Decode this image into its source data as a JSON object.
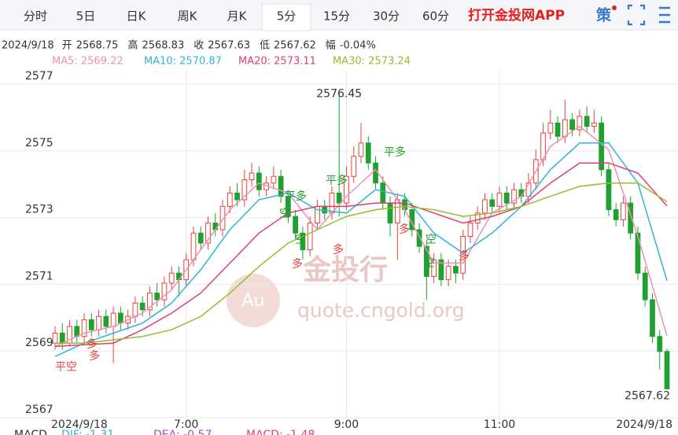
{
  "tabs": [
    "分时",
    "5日",
    "日K",
    "周K",
    "月K",
    "5分",
    "15分",
    "30分",
    "60分"
  ],
  "active_tab": 5,
  "app_link": "打开金投网APP",
  "strategy_icon": "策",
  "info": {
    "date": "2024/9/18",
    "items": [
      {
        "label": "开",
        "value": "2568.75"
      },
      {
        "label": "高",
        "value": "2568.83"
      },
      {
        "label": "收",
        "value": "2567.63"
      },
      {
        "label": "低",
        "value": "2567.62"
      },
      {
        "label": "幅",
        "value": "-0.04%"
      }
    ]
  },
  "watermark": {
    "logo": "Au",
    "brand": "金投行",
    "site": "quote.cngold.org"
  },
  "signals": [
    "平空",
    "多",
    "平多",
    "空",
    "多",
    "平多",
    "多",
    "平多",
    "空",
    "多",
    "多",
    "空",
    "多",
    "空"
  ],
  "macd_footer": [
    "MACD",
    "DIF: -1.31",
    "DEA: -0.57",
    "MACD: -1.48"
  ],
  "chart_data": {
    "type": "candlestick",
    "xlim": [
      0,
      84
    ],
    "xticks": [
      {
        "value": 0,
        "label": "2024/9/18"
      },
      {
        "value": 18,
        "label": "7:00"
      },
      {
        "value": 40,
        "label": "9:00"
      },
      {
        "value": 61,
        "label": "11:00"
      },
      {
        "value": 84,
        "label": "2024/9/18"
      }
    ],
    "ylim": [
      2567,
      2577
    ],
    "yticks": [
      2567,
      2569,
      2571,
      2573,
      2575,
      2577
    ],
    "grid": true,
    "up_color": "#e8423a",
    "down_color": "#1fa12f",
    "open": [
      2569.0,
      2569.3,
      2569.0,
      2569.5,
      2569.2,
      2569.7,
      2569.4,
      2569.8,
      2569.5,
      2569.9,
      2569.6,
      2569.8,
      2570.2,
      2570.0,
      2570.5,
      2570.3,
      2570.8,
      2571.1,
      2570.9,
      2571.5,
      2572.3,
      2572.0,
      2572.6,
      2572.4,
      2573.1,
      2573.5,
      2573.3,
      2573.9,
      2574.1,
      2573.6,
      2573.8,
      2574.0,
      2573.4,
      2572.8,
      2572.3,
      2571.8,
      2572.6,
      2573.1,
      2572.9,
      2573.5,
      2573.2,
      2574.0,
      2574.6,
      2575.0,
      2574.4,
      2573.8,
      2573.2,
      2572.6,
      2573.3,
      2573.0,
      2572.4,
      2571.9,
      2571.0,
      2571.5,
      2570.9,
      2571.3,
      2571.1,
      2572.2,
      2572.6,
      2572.9,
      2573.3,
      2573.1,
      2573.5,
      2573.2,
      2573.6,
      2573.4,
      2573.8,
      2574.5,
      2575.3,
      2575.6,
      2575.2,
      2575.7,
      2575.4,
      2575.8,
      2575.5,
      2575.6,
      2574.2,
      2573.0,
      2572.7,
      2573.2,
      2572.3,
      2571.1,
      2570.3,
      2569.2,
      2568.75
    ],
    "high": [
      2569.5,
      2569.6,
      2569.7,
      2569.7,
      2569.9,
      2569.9,
      2570.0,
      2570.0,
      2570.1,
      2570.1,
      2570.0,
      2570.4,
      2570.4,
      2570.7,
      2570.8,
      2571.0,
      2571.3,
      2571.3,
      2571.7,
      2572.5,
      2572.5,
      2572.8,
      2572.9,
      2573.3,
      2573.7,
      2573.8,
      2574.2,
      2574.4,
      2574.3,
      2574.0,
      2574.3,
      2574.2,
      2573.6,
      2573.0,
      2572.5,
      2572.8,
      2573.3,
      2573.3,
      2573.7,
      2576.45,
      2574.3,
      2574.9,
      2575.6,
      2575.2,
      2574.6,
      2574.0,
      2573.4,
      2573.5,
      2573.5,
      2573.2,
      2572.6,
      2572.1,
      2571.7,
      2571.7,
      2571.5,
      2571.5,
      2572.4,
      2572.8,
      2573.1,
      2573.5,
      2573.5,
      2573.7,
      2573.7,
      2573.8,
      2573.8,
      2574.1,
      2574.8,
      2575.6,
      2576.0,
      2575.8,
      2576.3,
      2575.9,
      2576.0,
      2576.1,
      2576.0,
      2575.8,
      2574.4,
      2573.2,
      2573.4,
      2573.4,
      2572.5,
      2571.3,
      2570.5,
      2569.4,
      2568.83
    ],
    "low": [
      2568.8,
      2568.8,
      2568.9,
      2569.0,
      2569.0,
      2569.2,
      2569.2,
      2569.3,
      2568.4,
      2569.4,
      2569.4,
      2569.6,
      2569.8,
      2569.8,
      2570.1,
      2570.1,
      2570.6,
      2570.4,
      2570.7,
      2571.3,
      2571.8,
      2571.8,
      2572.2,
      2572.2,
      2572.9,
      2573.1,
      2573.1,
      2573.7,
      2573.4,
      2573.4,
      2573.6,
      2573.2,
      2572.6,
      2572.1,
      2571.5,
      2571.6,
      2572.4,
      2572.7,
      2572.7,
      2572.8,
      2573.0,
      2573.8,
      2574.4,
      2574.2,
      2573.6,
      2573.0,
      2572.2,
      2571.5,
      2572.8,
      2572.2,
      2571.7,
      2570.3,
      2570.8,
      2570.7,
      2570.7,
      2570.8,
      2570.9,
      2572.0,
      2572.4,
      2572.7,
      2572.9,
      2572.9,
      2573.0,
      2573.0,
      2573.2,
      2573.2,
      2573.6,
      2574.3,
      2575.1,
      2575.0,
      2575.0,
      2575.2,
      2575.2,
      2575.3,
      2575.3,
      2574.0,
      2572.8,
      2572.5,
      2572.5,
      2572.1,
      2570.9,
      2570.1,
      2569.0,
      2568.2,
      2567.62
    ],
    "close": [
      2569.3,
      2569.0,
      2569.5,
      2569.2,
      2569.7,
      2569.4,
      2569.8,
      2569.5,
      2569.9,
      2569.6,
      2569.8,
      2570.2,
      2570.0,
      2570.5,
      2570.3,
      2570.8,
      2571.1,
      2570.9,
      2571.5,
      2572.3,
      2572.0,
      2572.6,
      2572.4,
      2573.1,
      2573.5,
      2573.3,
      2573.9,
      2574.1,
      2573.6,
      2573.8,
      2574.0,
      2573.4,
      2572.8,
      2572.3,
      2571.8,
      2572.6,
      2573.1,
      2572.9,
      2573.5,
      2573.2,
      2574.0,
      2574.6,
      2575.0,
      2574.4,
      2573.8,
      2573.2,
      2572.6,
      2573.3,
      2573.0,
      2572.4,
      2571.9,
      2571.0,
      2571.5,
      2570.9,
      2571.3,
      2571.1,
      2572.2,
      2572.6,
      2572.9,
      2573.3,
      2573.1,
      2573.5,
      2573.2,
      2573.6,
      2573.4,
      2573.8,
      2574.5,
      2575.3,
      2575.6,
      2575.2,
      2575.7,
      2575.4,
      2575.8,
      2575.5,
      2575.6,
      2574.2,
      2573.0,
      2572.7,
      2573.2,
      2572.3,
      2571.1,
      2570.3,
      2569.2,
      2568.75,
      2567.63
    ],
    "ma_x": [
      0,
      4,
      8,
      12,
      16,
      20,
      24,
      28,
      32,
      36,
      40,
      44,
      48,
      52,
      56,
      60,
      64,
      68,
      72,
      76,
      80,
      84
    ],
    "series": [
      {
        "name": "MA5: 2569.22",
        "color": "#f08fb0",
        "values": [
          2568.9,
          2569.3,
          2569.5,
          2569.9,
          2570.6,
          2571.8,
          2573.0,
          2573.8,
          2573.5,
          2572.4,
          2573.4,
          2574.2,
          2573.0,
          2571.4,
          2571.4,
          2572.9,
          2573.4,
          2574.9,
          2575.5,
          2574.8,
          2572.2,
          2569.22
        ]
      },
      {
        "name": "MA10: 2570.87",
        "color": "#2fb5d8",
        "values": [
          2568.6,
          2569.0,
          2569.3,
          2569.6,
          2570.2,
          2571.2,
          2572.4,
          2573.3,
          2573.5,
          2573.0,
          2572.9,
          2573.6,
          2573.4,
          2572.3,
          2571.7,
          2572.3,
          2573.1,
          2574.2,
          2575.0,
          2575.0,
          2573.8,
          2570.87
        ]
      },
      {
        "name": "MA20: 2573.11",
        "color": "#de3f73",
        "values": [
          2568.9,
          2568.95,
          2569.0,
          2569.4,
          2569.9,
          2570.5,
          2571.4,
          2572.3,
          2572.9,
          2573.1,
          2573.1,
          2573.2,
          2573.2,
          2572.9,
          2572.6,
          2572.8,
          2573.1,
          2573.8,
          2574.4,
          2574.4,
          2574.1,
          2573.11
        ]
      },
      {
        "name": "MA30: 2573.24",
        "color": "#93bf2c",
        "values": [
          2569.0,
          2569.0,
          2569.1,
          2569.2,
          2569.4,
          2569.8,
          2570.5,
          2571.3,
          2572.0,
          2572.4,
          2572.8,
          2573.0,
          2573.1,
          2573.0,
          2572.8,
          2572.9,
          2573.1,
          2573.4,
          2573.7,
          2573.8,
          2573.8,
          2573.24
        ]
      }
    ]
  }
}
